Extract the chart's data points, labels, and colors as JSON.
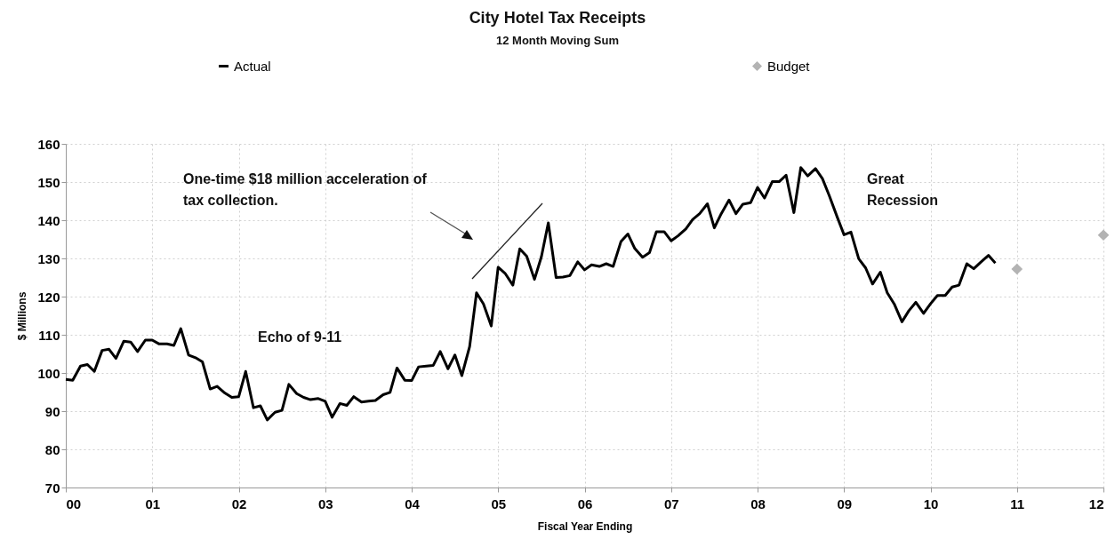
{
  "chart_data": {
    "type": "line",
    "title": "City Hotel Tax Receipts",
    "subtitle": "12 Month Moving Sum",
    "xlabel": "Fiscal Year Ending",
    "ylabel": "$ Millions",
    "xlim": [
      0,
      12
    ],
    "xticks": [
      {
        "value": 0,
        "label": "00"
      },
      {
        "value": 1,
        "label": "01"
      },
      {
        "value": 2,
        "label": "02"
      },
      {
        "value": 3,
        "label": "03"
      },
      {
        "value": 4,
        "label": "04"
      },
      {
        "value": 5,
        "label": "05"
      },
      {
        "value": 6,
        "label": "06"
      },
      {
        "value": 7,
        "label": "07"
      },
      {
        "value": 8,
        "label": "08"
      },
      {
        "value": 9,
        "label": "09"
      },
      {
        "value": 10,
        "label": "10"
      },
      {
        "value": 11,
        "label": "11"
      },
      {
        "value": 12,
        "label": "12"
      }
    ],
    "ylim": [
      70,
      160
    ],
    "yticks": [
      70,
      80,
      90,
      100,
      110,
      120,
      130,
      140,
      150,
      160
    ],
    "grid": true,
    "legend": "top",
    "annotations": [
      "One-time $18 million acceleration of tax collection.",
      "Echo of 9-11",
      "Great Recession"
    ],
    "series": [
      {
        "name": "Actual",
        "color": "#000000",
        "x": [
          0,
          0.08,
          0.17,
          0.25,
          0.33,
          0.42,
          0.5,
          0.58,
          0.67,
          0.75,
          0.83,
          0.92,
          1,
          1.08,
          1.17,
          1.25,
          1.33,
          1.42,
          1.5,
          1.58,
          1.67,
          1.75,
          1.83,
          1.92,
          2,
          2.08,
          2.17,
          2.25,
          2.33,
          2.42,
          2.5,
          2.58,
          2.67,
          2.75,
          2.83,
          2.92,
          3,
          3.08,
          3.17,
          3.25,
          3.33,
          3.42,
          3.5,
          3.58,
          3.67,
          3.75,
          3.83,
          3.92,
          4,
          4.08,
          4.17,
          4.25,
          4.33,
          4.42,
          4.5,
          4.58,
          4.67,
          4.75,
          4.83,
          4.92,
          5,
          5.08,
          5.17,
          5.25,
          5.33,
          5.42,
          5.5,
          5.58,
          5.67,
          5.75,
          5.83,
          5.92,
          6,
          6.08,
          6.17,
          6.25,
          6.33,
          6.42,
          6.5,
          6.58,
          6.67,
          6.75,
          6.83,
          6.92,
          7,
          7.08,
          7.17,
          7.25,
          7.33,
          7.42,
          7.5,
          7.58,
          7.67,
          7.75,
          7.83,
          7.92,
          8,
          8.08,
          8.17,
          8.25,
          8.33,
          8.42,
          8.5,
          8.58,
          8.67,
          8.75,
          8.83,
          8.92,
          9,
          9.08,
          9.17,
          9.25,
          9.33,
          9.42,
          9.5,
          9.58,
          9.67,
          9.75,
          9.83,
          9.92,
          10,
          10.08,
          10.17,
          10.25,
          10.33,
          10.42,
          10.5,
          10.58,
          10.67,
          10.75
        ],
        "values": [
          98.3,
          98.1,
          101.8,
          102.2,
          100.4,
          105.9,
          106.2,
          103.8,
          108.3,
          108.1,
          105.6,
          108.6,
          108.6,
          107.6,
          107.6,
          107.2,
          111.6,
          104.7,
          104.0,
          102.9,
          95.8,
          96.5,
          94.9,
          93.6,
          93.8,
          100.4,
          90.9,
          91.4,
          87.7,
          89.7,
          90.2,
          97.0,
          94.6,
          93.6,
          93.0,
          93.3,
          92.6,
          88.4,
          92.0,
          91.5,
          93.8,
          92.4,
          92.6,
          92.8,
          94.3,
          94.9,
          101.3,
          98.1,
          98.0,
          101.6,
          101.8,
          102.0,
          105.6,
          101.1,
          104.7,
          99.3,
          106.9,
          121.0,
          118.1,
          112.3,
          127.7,
          126.1,
          123.0,
          132.5,
          130.6,
          124.5,
          130.4,
          139.3,
          125.0,
          125.1,
          125.5,
          129.1,
          127.0,
          128.3,
          127.9,
          128.6,
          127.9,
          134.4,
          136.4,
          132.6,
          130.3,
          131.5,
          137.0,
          137.0,
          134.6,
          135.9,
          137.7,
          140.2,
          141.7,
          144.3,
          138.0,
          141.7,
          145.3,
          141.7,
          144.2,
          144.6,
          148.6,
          145.8,
          150.1,
          150.1,
          151.8,
          142.0,
          153.8,
          151.6,
          153.5,
          150.9,
          146.4,
          140.9,
          136.2,
          136.9,
          129.9,
          127.5,
          123.3,
          126.4,
          121.0,
          118.1,
          113.4,
          116.3,
          118.5,
          115.6,
          118.1,
          120.3,
          120.3,
          122.5,
          123.0,
          128.6,
          127.3,
          129.0,
          130.8,
          128.8
        ]
      },
      {
        "name": "Budget",
        "type": "scatter",
        "marker": "diamond",
        "color": "#b3b3b3",
        "x": [
          11,
          12
        ],
        "values": [
          127.2,
          136.1
        ]
      }
    ]
  }
}
